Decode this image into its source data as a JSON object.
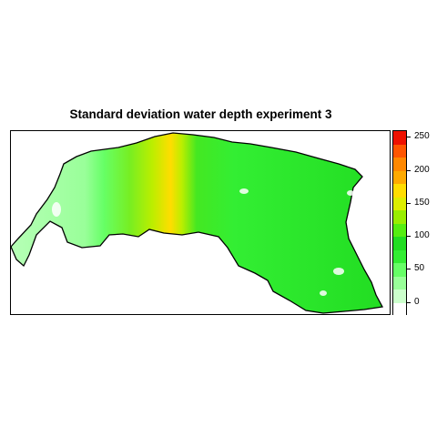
{
  "map": {
    "title": "Standard deviation water depth experiment 3"
  },
  "legend": {
    "ticks": [
      "0",
      "50",
      "100",
      "150",
      "200",
      "250"
    ],
    "tick_values": [
      0,
      50,
      100,
      150,
      200,
      250
    ],
    "range": [
      -20,
      260
    ],
    "bands": [
      {
        "from": -20,
        "to": 0,
        "color": "#ffffff"
      },
      {
        "from": 0,
        "to": 20,
        "color": "#ccffcc"
      },
      {
        "from": 20,
        "to": 40,
        "color": "#99ff99"
      },
      {
        "from": 40,
        "to": 60,
        "color": "#66ff66"
      },
      {
        "from": 60,
        "to": 80,
        "color": "#33ee33"
      },
      {
        "from": 80,
        "to": 100,
        "color": "#22dd22"
      },
      {
        "from": 100,
        "to": 120,
        "color": "#55ee11"
      },
      {
        "from": 120,
        "to": 140,
        "color": "#99ee00"
      },
      {
        "from": 140,
        "to": 160,
        "color": "#ddee00"
      },
      {
        "from": 160,
        "to": 180,
        "color": "#ffdd00"
      },
      {
        "from": 180,
        "to": 200,
        "color": "#ffaa00"
      },
      {
        "from": 200,
        "to": 220,
        "color": "#ff8800"
      },
      {
        "from": 220,
        "to": 240,
        "color": "#ff5500"
      },
      {
        "from": 240,
        "to": 260,
        "color": "#ee1100"
      }
    ]
  },
  "colors": {
    "light_green": "#99ff99",
    "mid_green": "#33ee33",
    "bright_green": "#22dd22",
    "yellow_green": "#ccee00",
    "yellow": "#ffdd00",
    "outline": "#000000"
  }
}
